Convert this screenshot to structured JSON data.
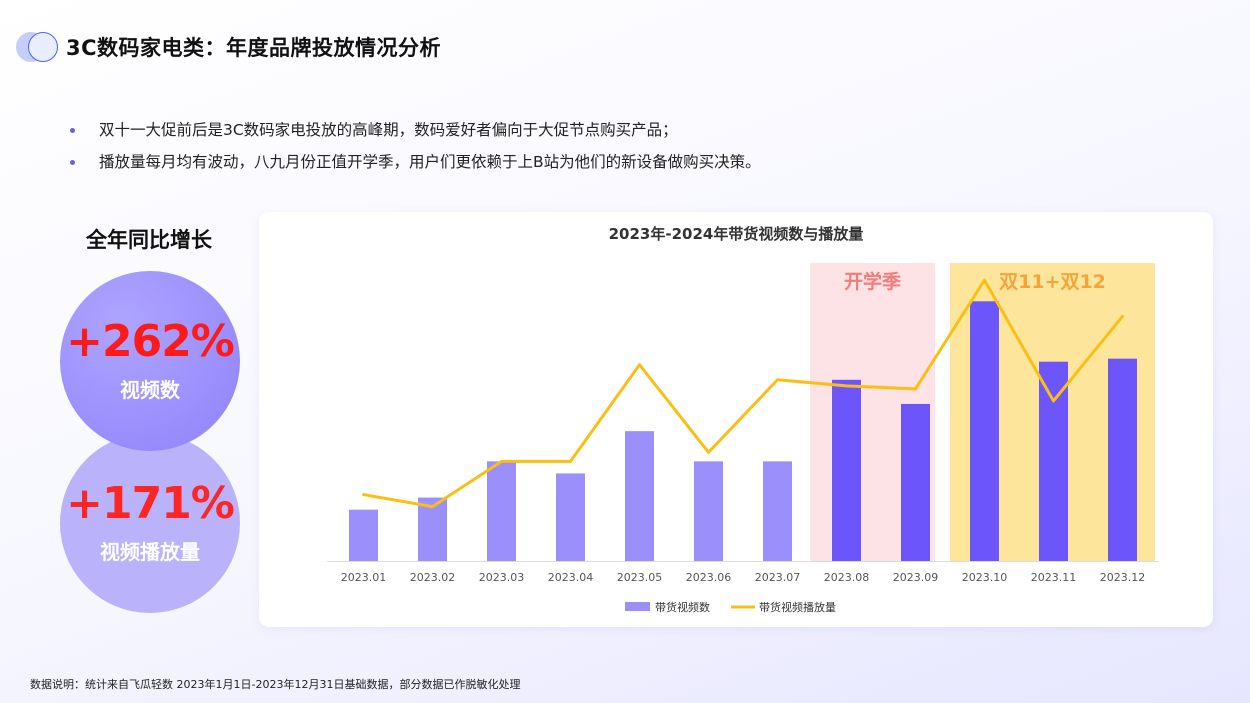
{
  "header": {
    "title": "3C数码家电类：年度品牌投放情况分析"
  },
  "bullets": [
    "双十一大促前后是3C数码家电投放的高峰期，数码爱好者偏向于大促节点购买产品；",
    "播放量每月均有波动，八九月份正值开学季，用户们更依赖于上B站为他们的新设备做购买决策。"
  ],
  "growth": {
    "title": "全年同比增长",
    "video_count": {
      "value": "+262%",
      "label": "视频数"
    },
    "play_count": {
      "value": "+171%",
      "label": "视频播放量"
    }
  },
  "colors": {
    "bar_normal": "#9b8ffc",
    "bar_highlight": "#6c55fa",
    "line": "#fbbf14",
    "band_school": "#fde2e6",
    "band_sale": "#fde69c",
    "band_school_text": "#f27d78",
    "band_sale_text": "#f5a43b"
  },
  "chart_data": {
    "type": "bar",
    "title": "2023年-2024年带货视频数与播放量",
    "categories": [
      "2023.01",
      "2023.02",
      "2023.03",
      "2023.04",
      "2023.05",
      "2023.06",
      "2023.07",
      "2023.08",
      "2023.09",
      "2023.10",
      "2023.11",
      "2023.12"
    ],
    "series": [
      {
        "name": "带货视频数",
        "type": "bar",
        "values": [
          17,
          21,
          33,
          29,
          43,
          33,
          33,
          60,
          52,
          86,
          66,
          67
        ]
      },
      {
        "name": "带货视频播放量",
        "type": "line",
        "values": [
          22,
          18,
          33,
          33,
          65,
          36,
          60,
          58,
          57,
          93,
          53,
          81
        ]
      }
    ],
    "highlighted_categories": [
      "2023.08",
      "2023.09",
      "2023.10",
      "2023.11",
      "2023.12"
    ],
    "bands": [
      {
        "label": "开学季",
        "from": "2023.08",
        "to": "2023.09"
      },
      {
        "label": "双11+双12",
        "from": "2023.10",
        "to": "2023.12"
      }
    ],
    "ylim": [
      0,
      100
    ],
    "grid": false,
    "legend": "bottom-center"
  },
  "footnote": "数据说明：统计来自飞瓜轻数 2023年1月1日-2023年12月31日基础数据，部分数据已作脱敏化处理"
}
